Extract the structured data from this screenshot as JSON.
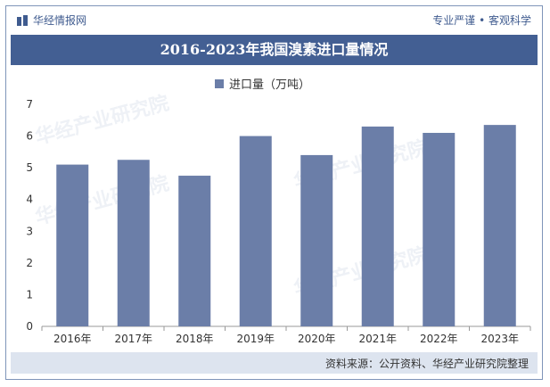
{
  "header": {
    "brand": "华经情报网",
    "slogan": "专业严谨 • 客观科学"
  },
  "title": "2016-2023年我国溴素进口量情况",
  "watermark": "华经产业研究院",
  "source": "资料来源：公开资料、华经产业研究院整理",
  "colors": {
    "bar": "#6b7ea8",
    "title_bg": "#435f93",
    "footer_bg": "#dde4ef"
  },
  "chart_data": {
    "type": "bar",
    "categories": [
      "2016年",
      "2017年",
      "2018年",
      "2019年",
      "2020年",
      "2021年",
      "2022年",
      "2023年"
    ],
    "series": [
      {
        "name": "进口量（万吨）",
        "values": [
          5.1,
          5.25,
          4.75,
          6.0,
          5.4,
          6.3,
          6.1,
          6.35
        ]
      }
    ],
    "yticks": [
      "0",
      "1",
      "2",
      "3",
      "4",
      "5",
      "6",
      "7"
    ],
    "ylim": [
      0,
      7
    ],
    "legend": "top-center",
    "grid": false
  }
}
